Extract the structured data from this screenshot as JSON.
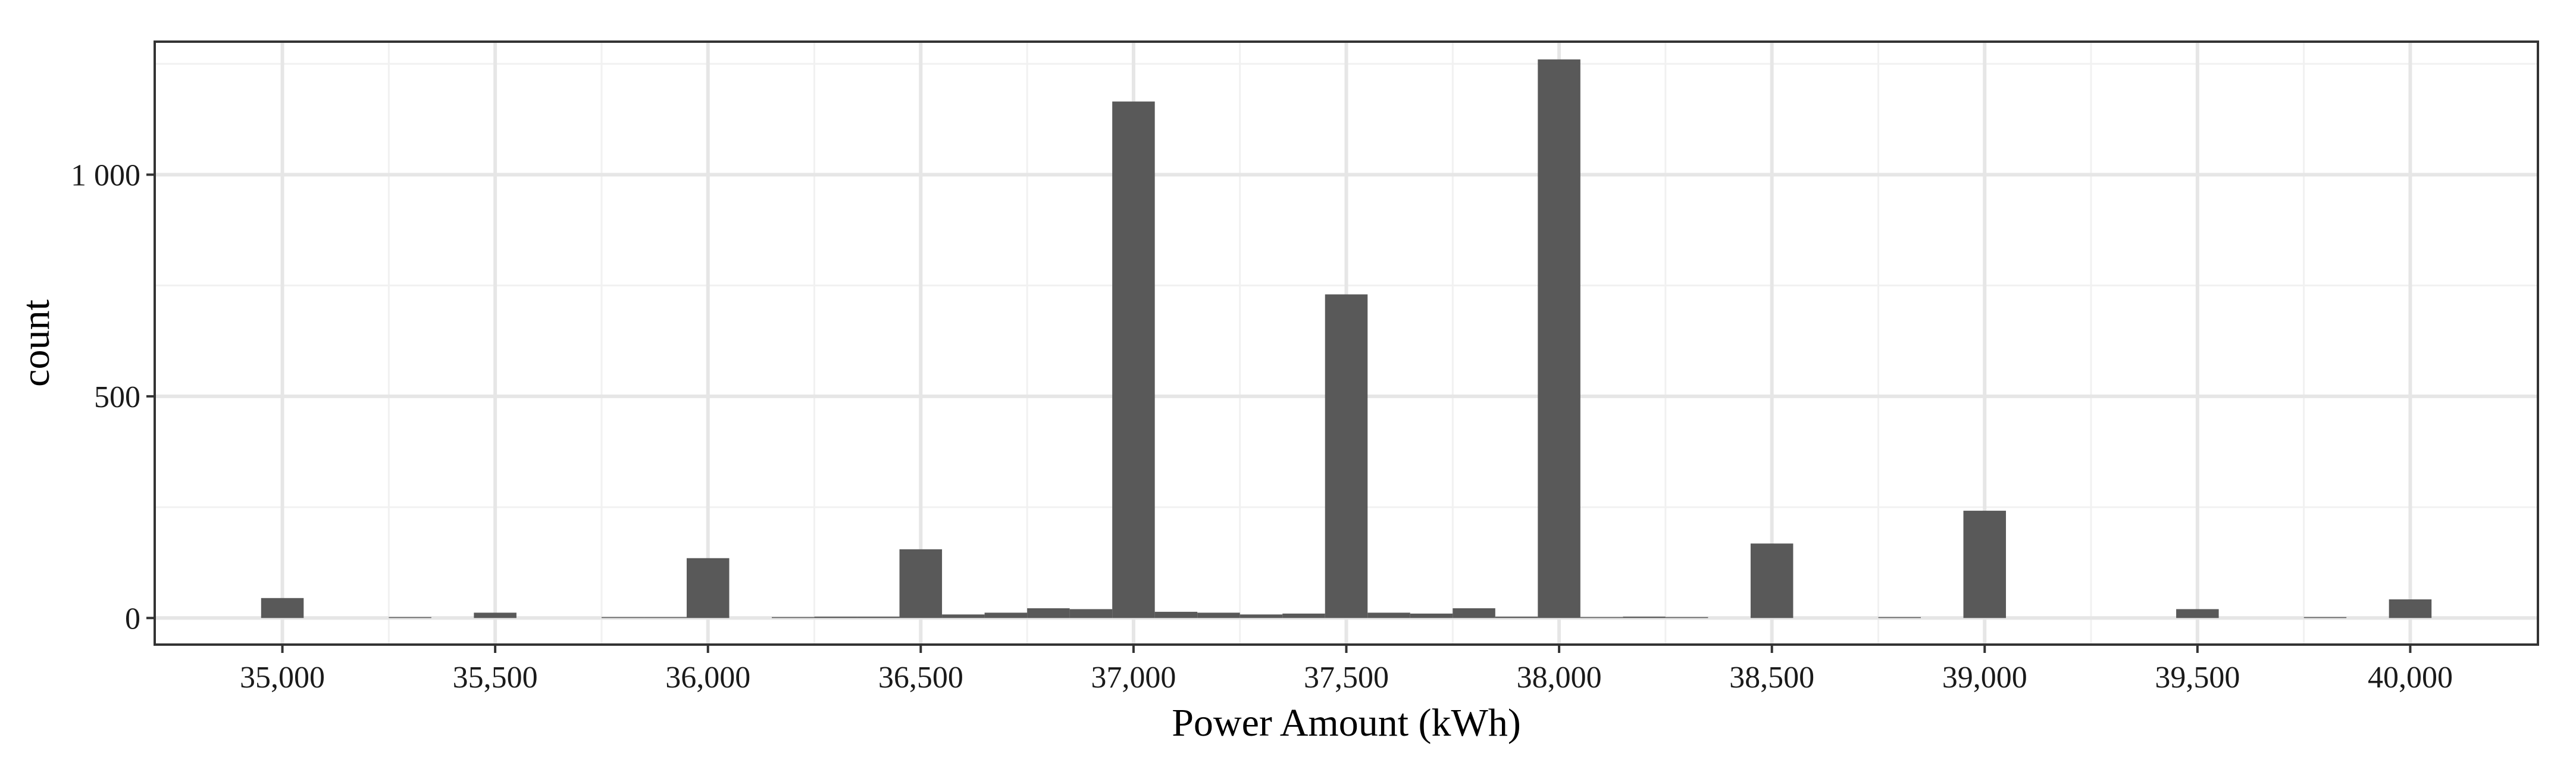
{
  "chart_data": {
    "type": "bar",
    "subtype": "histogram",
    "xlabel": "Power Amount (kWh)",
    "ylabel": "count",
    "xlim": [
      34700,
      40300
    ],
    "ylim": [
      -60,
      1300
    ],
    "xticks": [
      {
        "value": 35000,
        "label": "35,000"
      },
      {
        "value": 35500,
        "label": "35,500"
      },
      {
        "value": 36000,
        "label": "36,000"
      },
      {
        "value": 36500,
        "label": "36,500"
      },
      {
        "value": 37000,
        "label": "37,000"
      },
      {
        "value": 37500,
        "label": "37,500"
      },
      {
        "value": 38000,
        "label": "38,000"
      },
      {
        "value": 38500,
        "label": "38,500"
      },
      {
        "value": 39000,
        "label": "39,000"
      },
      {
        "value": 39500,
        "label": "39,500"
      },
      {
        "value": 40000,
        "label": "40,000"
      }
    ],
    "yticks": [
      {
        "value": 0,
        "label": "0"
      },
      {
        "value": 500,
        "label": "500"
      },
      {
        "value": 1000,
        "label": "1 000"
      }
    ],
    "bin_width": 100,
    "bins": [
      {
        "x": 35000,
        "count": 45
      },
      {
        "x": 35300,
        "count": 2
      },
      {
        "x": 35500,
        "count": 12
      },
      {
        "x": 35800,
        "count": 2
      },
      {
        "x": 35900,
        "count": 2
      },
      {
        "x": 36000,
        "count": 135
      },
      {
        "x": 36200,
        "count": 2
      },
      {
        "x": 36300,
        "count": 3
      },
      {
        "x": 36400,
        "count": 3
      },
      {
        "x": 36500,
        "count": 155
      },
      {
        "x": 36600,
        "count": 8
      },
      {
        "x": 36700,
        "count": 12
      },
      {
        "x": 36800,
        "count": 22
      },
      {
        "x": 36900,
        "count": 20
      },
      {
        "x": 37000,
        "count": 1165
      },
      {
        "x": 37100,
        "count": 14
      },
      {
        "x": 37200,
        "count": 12
      },
      {
        "x": 37300,
        "count": 8
      },
      {
        "x": 37400,
        "count": 10
      },
      {
        "x": 37500,
        "count": 730
      },
      {
        "x": 37600,
        "count": 12
      },
      {
        "x": 37700,
        "count": 10
      },
      {
        "x": 37800,
        "count": 22
      },
      {
        "x": 37900,
        "count": 3
      },
      {
        "x": 38000,
        "count": 1260
      },
      {
        "x": 38100,
        "count": 2
      },
      {
        "x": 38200,
        "count": 3
      },
      {
        "x": 38300,
        "count": 2
      },
      {
        "x": 38500,
        "count": 168
      },
      {
        "x": 38800,
        "count": 2
      },
      {
        "x": 39000,
        "count": 242
      },
      {
        "x": 39500,
        "count": 20
      },
      {
        "x": 39800,
        "count": 2
      },
      {
        "x": 40000,
        "count": 42
      }
    ],
    "colors": {
      "bar": "#595959",
      "panel_border": "#333333",
      "grid_major": "#e6e6e6",
      "grid_minor": "#f1f1f1",
      "background": "#ffffff"
    }
  }
}
